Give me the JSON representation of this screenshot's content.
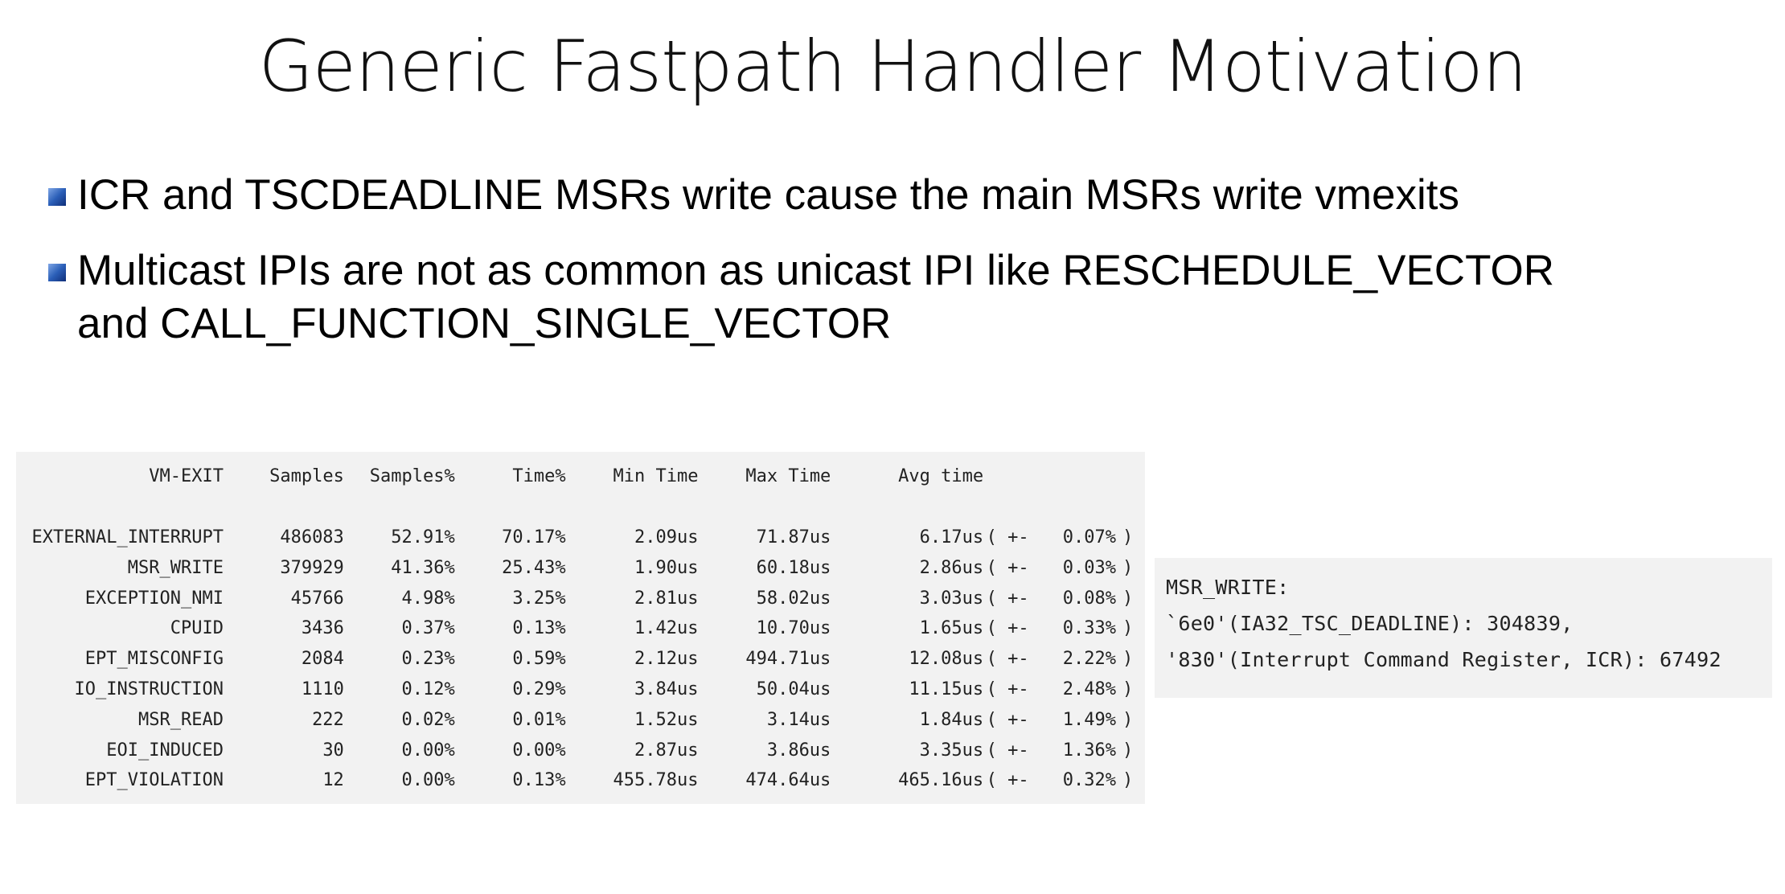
{
  "title": "Generic Fastpath Handler Motivation",
  "bullets": [
    {
      "text": "ICR and TSCDEADLINE MSRs write cause the main MSRs write vmexits"
    },
    {
      "line1": "Multicast IPIs are not as common as unicast IPI like RESCHEDULE_VECTOR",
      "line2": "and CALL_FUNCTION_SINGLE_VECTOR"
    }
  ],
  "vmexit_table": {
    "headers": [
      "VM-EXIT",
      "Samples",
      "Samples%",
      "Time%",
      "Min Time",
      "Max Time",
      "Avg time"
    ],
    "rows": [
      {
        "name": "EXTERNAL_INTERRUPT",
        "samples": "486083",
        "samples_pct": "52.91%",
        "time_pct": "70.17%",
        "min": "2.09us",
        "max": "71.87us",
        "avg": "6.17us",
        "pm": "( +-",
        "dev": "0.07%",
        "close": ")"
      },
      {
        "name": "MSR_WRITE",
        "samples": "379929",
        "samples_pct": "41.36%",
        "time_pct": "25.43%",
        "min": "1.90us",
        "max": "60.18us",
        "avg": "2.86us",
        "pm": "( +-",
        "dev": "0.03%",
        "close": ")"
      },
      {
        "name": "EXCEPTION_NMI",
        "samples": "45766",
        "samples_pct": "4.98%",
        "time_pct": "3.25%",
        "min": "2.81us",
        "max": "58.02us",
        "avg": "3.03us",
        "pm": "( +-",
        "dev": "0.08%",
        "close": ")"
      },
      {
        "name": "CPUID",
        "samples": "3436",
        "samples_pct": "0.37%",
        "time_pct": "0.13%",
        "min": "1.42us",
        "max": "10.70us",
        "avg": "1.65us",
        "pm": "( +-",
        "dev": "0.33%",
        "close": ")"
      },
      {
        "name": "EPT_MISCONFIG",
        "samples": "2084",
        "samples_pct": "0.23%",
        "time_pct": "0.59%",
        "min": "2.12us",
        "max": "494.71us",
        "avg": "12.08us",
        "pm": "( +-",
        "dev": "2.22%",
        "close": ")"
      },
      {
        "name": "IO_INSTRUCTION",
        "samples": "1110",
        "samples_pct": "0.12%",
        "time_pct": "0.29%",
        "min": "3.84us",
        "max": "50.04us",
        "avg": "11.15us",
        "pm": "( +-",
        "dev": "2.48%",
        "close": ")"
      },
      {
        "name": "MSR_READ",
        "samples": "222",
        "samples_pct": "0.02%",
        "time_pct": "0.01%",
        "min": "1.52us",
        "max": "3.14us",
        "avg": "1.84us",
        "pm": "( +-",
        "dev": "1.49%",
        "close": ")"
      },
      {
        "name": "EOI_INDUCED",
        "samples": "30",
        "samples_pct": "0.00%",
        "time_pct": "0.00%",
        "min": "2.87us",
        "max": "3.86us",
        "avg": "3.35us",
        "pm": "( +-",
        "dev": "1.36%",
        "close": ")"
      },
      {
        "name": "EPT_VIOLATION",
        "samples": "12",
        "samples_pct": "0.00%",
        "time_pct": "0.13%",
        "min": "455.78us",
        "max": "474.64us",
        "avg": "465.16us",
        "pm": "( +-",
        "dev": "0.32%",
        "close": ")"
      }
    ]
  },
  "msr_breakdown": {
    "heading": "MSR_WRITE:",
    "lines": [
      "`6e0'(IA32_TSC_DEADLINE): 304839,",
      "'830'(Interrupt Command Register, ICR): 67492"
    ]
  },
  "colors": {
    "panel_background": "#f2f2f2",
    "bullet_marker": "#2b5fb8"
  }
}
